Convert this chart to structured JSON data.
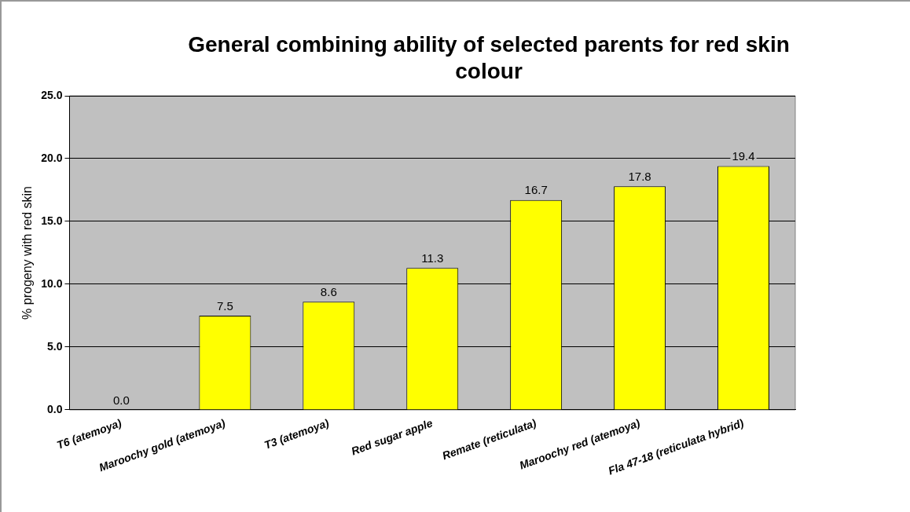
{
  "chart_data": {
    "type": "bar",
    "title": "General combining ability of selected parents for red skin colour",
    "ylabel": "% progeny with red skin",
    "categories": [
      "T6 (atemoya)",
      "Maroochy gold (atemoya)",
      "T3 (atemoya)",
      "Red sugar apple",
      "Remate (reticulata)",
      "Maroochy red (atemoya)",
      "Fla 47-18 (reticulata hybrid)"
    ],
    "values": [
      0,
      7.5,
      8.6,
      11.3,
      16.7,
      17.8,
      19.4
    ],
    "value_labels": [
      "0.0",
      "7.5",
      "8.6",
      "11.3",
      "16.7",
      "17.8",
      "19.4"
    ],
    "color": "#ffff00",
    "ylim": [
      0,
      25
    ],
    "yticks": [
      {
        "value": 0,
        "label": "0.0"
      },
      {
        "value": 5,
        "label": "5.0"
      },
      {
        "value": 10,
        "label": "10.0"
      },
      {
        "value": 15,
        "label": "15.0"
      },
      {
        "value": 20,
        "label": "20.0"
      },
      {
        "value": 25,
        "label": "25.0"
      }
    ],
    "grid": "y",
    "legend": false
  }
}
